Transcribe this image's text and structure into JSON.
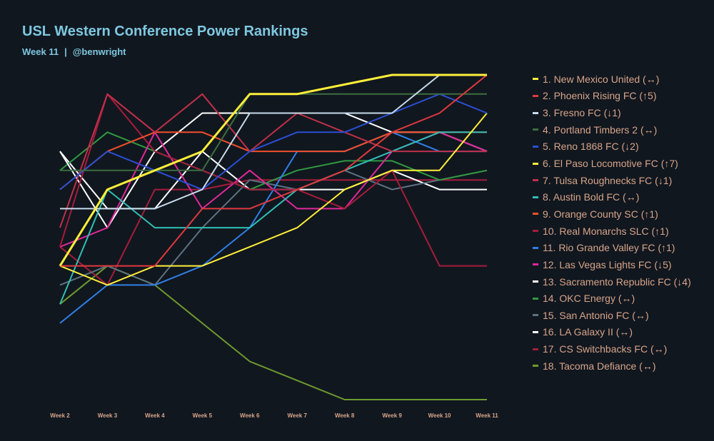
{
  "title": "USL Western Conference Power Rankings",
  "subtitle_week": "Week 11",
  "subtitle_separator": "|",
  "subtitle_author": "@benwright",
  "chart_data": {
    "type": "line",
    "title": "USL Western Conference Power Rankings",
    "x": [
      "Week 2",
      "Week 3",
      "Week 4",
      "Week 5",
      "Week 6",
      "Week 7",
      "Week 8",
      "Week 9",
      "Week 10",
      "Week 11"
    ],
    "y_reversed": true,
    "ylim": [
      1,
      18
    ],
    "grid": false,
    "legend_position": "right",
    "series": [
      {
        "name": "1. New Mexico United (↔)",
        "color": "#ffef3a",
        "values": [
          11,
          7,
          6,
          5,
          2,
          2,
          1.5,
          1,
          1,
          1
        ]
      },
      {
        "name": "2. Phoenix Rising FC (↑5)",
        "color": "#e0393e",
        "values": [
          11,
          11,
          11,
          8,
          8,
          7,
          6,
          4,
          3,
          1
        ]
      },
      {
        "name": "3. Fresno FC (↓1)",
        "color": "#c6dbea",
        "values": [
          8,
          8,
          8,
          7,
          3,
          3,
          3,
          3,
          1,
          1
        ]
      },
      {
        "name": "4. Portland Timbers 2 (↔)",
        "color": "#3b6e3f",
        "values": [
          6,
          6,
          6,
          6,
          2,
          2,
          2,
          2,
          2,
          2
        ]
      },
      {
        "name": "5. Reno 1868 FC (↓2)",
        "color": "#2b4fd4",
        "values": [
          7,
          5,
          6,
          7,
          5,
          4,
          4,
          3,
          2,
          3
        ]
      },
      {
        "name": "6. El Paso Locomotive FC (↑7)",
        "color": "#ffef3a",
        "values": [
          11,
          12,
          11,
          11,
          10,
          9,
          7,
          6,
          6,
          3
        ]
      },
      {
        "name": "7. Tulsa Roughnecks FC (↓1)",
        "color": "#c0304a",
        "values": [
          9,
          2,
          4,
          2,
          5,
          3,
          4,
          5,
          5,
          5
        ]
      },
      {
        "name": "8. Austin Bold FC (↔)",
        "color": "#2fbfb4",
        "values": [
          13,
          7,
          9,
          9,
          9,
          7,
          6,
          5,
          4,
          4
        ]
      },
      {
        "name": "9. Orange County SC (↑1)",
        "color": "#f24f2a",
        "values": [
          7,
          5,
          4,
          4,
          5,
          5,
          5,
          4,
          4,
          4
        ]
      },
      {
        "name": "10. Real Monarchs SLC (↑1)",
        "color": "#a61c3c",
        "values": [
          10,
          2,
          5,
          6,
          7,
          7,
          8,
          6,
          11,
          11
        ]
      },
      {
        "name": "11. Rio Grande Valley FC (↑1)",
        "color": "#2f80e8",
        "values": [
          14,
          12,
          12,
          11,
          9,
          5,
          5,
          4,
          5,
          5
        ]
      },
      {
        "name": "12. Las Vegas Lights FC (↓5)",
        "color": "#e0289b",
        "values": [
          10,
          9,
          4,
          8,
          6,
          8,
          8,
          5,
          4,
          5
        ]
      },
      {
        "name": "13. Sacramento Republic FC (↓4)",
        "color": "#ffffff",
        "values": [
          5,
          9,
          5,
          3,
          3,
          3,
          3,
          4,
          4,
          5
        ]
      },
      {
        "name": "14. OKC Energy (↔)",
        "color": "#2e9a40",
        "values": [
          6,
          4,
          5,
          6,
          7,
          6,
          5.5,
          5.5,
          6.5,
          6
        ]
      },
      {
        "name": "15. San Antonio FC (↔)",
        "color": "#5d7280",
        "values": [
          12,
          11,
          12,
          9,
          6.5,
          7,
          6,
          7,
          6.5,
          6
        ]
      },
      {
        "name": "16. LA Galaxy II (↔)",
        "color": "#ffffff",
        "values": [
          5,
          8,
          8,
          5,
          7,
          7,
          7,
          6,
          7,
          7
        ]
      },
      {
        "name": "17. CS Switchbacks FC (↔)",
        "color": "#a61c3c",
        "values": [
          10,
          12,
          7,
          7,
          6.5,
          6.5,
          6.5,
          6.5,
          6.5,
          6.5
        ]
      },
      {
        "name": "18. Tacoma Defiance (↔)",
        "color": "#6e9a2e",
        "values": [
          13,
          11,
          12,
          14,
          16,
          17,
          18,
          18,
          18,
          18
        ]
      }
    ]
  }
}
